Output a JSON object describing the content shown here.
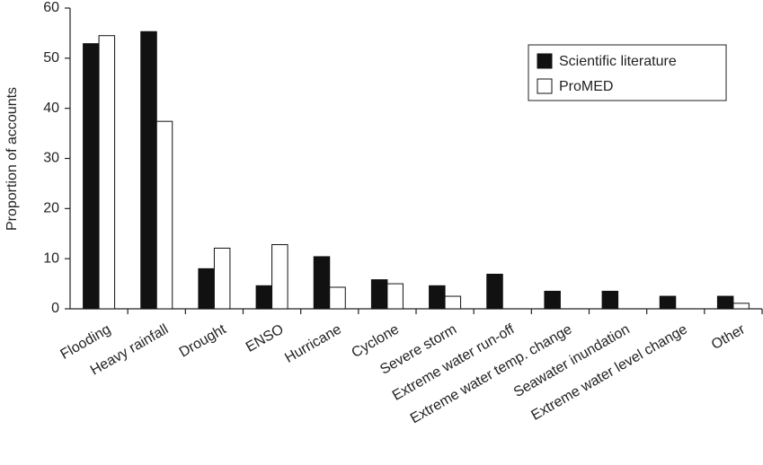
{
  "chart_data": {
    "type": "bar",
    "ylabel": "Proportion of accounts",
    "categories": [
      "Flooding",
      "Heavy rainfall",
      "Drought",
      "ENSO",
      "Hurricane",
      "Cyclone",
      "Severe storm",
      "Extreme water run-off",
      "Extreme water temp. change",
      "Seawater inundation",
      "Extreme water level change",
      "Other"
    ],
    "series": [
      {
        "name": "Scientific literature",
        "color": "#111111",
        "values": [
          52.9,
          55.3,
          8.0,
          4.6,
          10.4,
          5.8,
          4.6,
          6.9,
          3.5,
          3.5,
          2.5,
          2.5
        ]
      },
      {
        "name": "ProMED",
        "color": "#ffffff",
        "values": [
          54.5,
          37.4,
          12.1,
          12.8,
          4.3,
          5.0,
          2.5,
          0,
          0,
          0,
          0,
          1.1
        ]
      }
    ],
    "ylim": [
      0,
      60
    ],
    "yticks": [
      0,
      10,
      20,
      30,
      40,
      50,
      60
    ],
    "legend": "upper right",
    "grid": false
  }
}
